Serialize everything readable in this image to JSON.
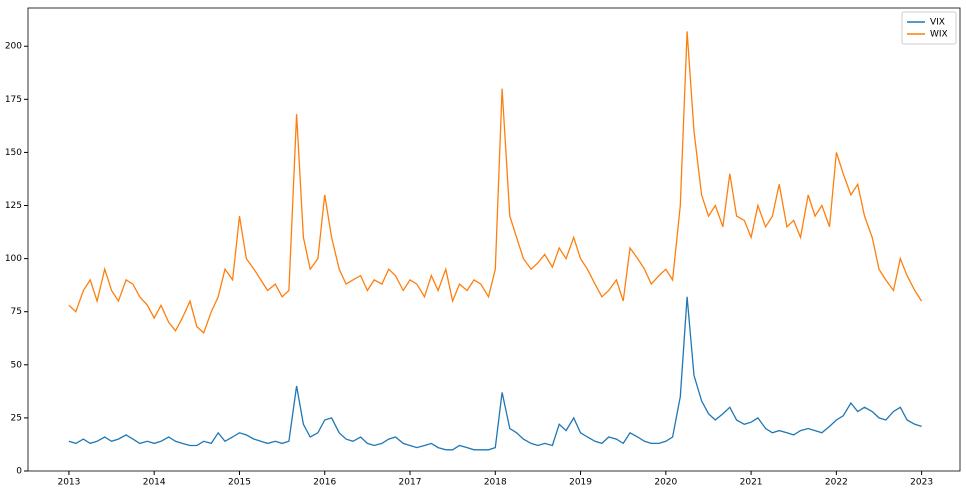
{
  "chart_data": {
    "type": "line",
    "x": [
      2013,
      2013.08,
      2013.17,
      2013.25,
      2013.33,
      2013.42,
      2013.5,
      2013.58,
      2013.67,
      2013.75,
      2013.83,
      2013.92,
      2014,
      2014.08,
      2014.17,
      2014.25,
      2014.33,
      2014.42,
      2014.5,
      2014.58,
      2014.67,
      2014.75,
      2014.83,
      2014.92,
      2015,
      2015.08,
      2015.17,
      2015.25,
      2015.33,
      2015.42,
      2015.5,
      2015.58,
      2015.67,
      2015.75,
      2015.83,
      2015.92,
      2016,
      2016.08,
      2016.17,
      2016.25,
      2016.33,
      2016.42,
      2016.5,
      2016.58,
      2016.67,
      2016.75,
      2016.83,
      2016.92,
      2017,
      2017.08,
      2017.17,
      2017.25,
      2017.33,
      2017.42,
      2017.5,
      2017.58,
      2017.67,
      2017.75,
      2017.83,
      2017.92,
      2018,
      2018.08,
      2018.17,
      2018.25,
      2018.33,
      2018.42,
      2018.5,
      2018.58,
      2018.67,
      2018.75,
      2018.83,
      2018.92,
      2019,
      2019.08,
      2019.17,
      2019.25,
      2019.33,
      2019.42,
      2019.5,
      2019.58,
      2019.67,
      2019.75,
      2019.83,
      2019.92,
      2020,
      2020.08,
      2020.17,
      2020.25,
      2020.33,
      2020.42,
      2020.5,
      2020.58,
      2020.67,
      2020.75,
      2020.83,
      2020.92,
      2021,
      2021.08,
      2021.17,
      2021.25,
      2021.33,
      2021.42,
      2021.5,
      2021.58,
      2021.67,
      2021.75,
      2021.83,
      2021.92,
      2022,
      2022.08,
      2022.17,
      2022.25,
      2022.33,
      2022.42,
      2022.5,
      2022.58,
      2022.67,
      2022.75,
      2022.83,
      2022.92,
      2023
    ],
    "series": [
      {
        "name": "VIX",
        "color": "#1f77b4",
        "values": [
          14,
          13,
          15,
          13,
          14,
          16,
          14,
          15,
          17,
          15,
          13,
          14,
          13,
          14,
          16,
          14,
          13,
          12,
          12,
          14,
          13,
          18,
          14,
          16,
          18,
          17,
          15,
          14,
          13,
          14,
          13,
          14,
          40,
          22,
          16,
          18,
          24,
          25,
          18,
          15,
          14,
          16,
          13,
          12,
          13,
          15,
          16,
          13,
          12,
          11,
          12,
          13,
          11,
          10,
          10,
          12,
          11,
          10,
          10,
          10,
          11,
          37,
          20,
          18,
          15,
          13,
          12,
          13,
          12,
          22,
          19,
          25,
          18,
          16,
          14,
          13,
          16,
          15,
          13,
          18,
          16,
          14,
          13,
          13,
          14,
          16,
          35,
          82,
          45,
          33,
          27,
          24,
          27,
          30,
          24,
          22,
          23,
          25,
          20,
          18,
          19,
          18,
          17,
          19,
          20,
          19,
          18,
          21,
          24,
          26,
          32,
          28,
          30,
          28,
          25,
          24,
          28,
          30,
          24,
          22,
          21
        ]
      },
      {
        "name": "WIX",
        "color": "#ff7f0e",
        "values": [
          78,
          75,
          85,
          90,
          80,
          95,
          85,
          80,
          90,
          88,
          82,
          78,
          72,
          78,
          70,
          66,
          72,
          80,
          68,
          65,
          75,
          82,
          95,
          90,
          120,
          100,
          95,
          90,
          85,
          88,
          82,
          85,
          168,
          110,
          95,
          100,
          130,
          110,
          95,
          88,
          90,
          92,
          85,
          90,
          88,
          95,
          92,
          85,
          90,
          88,
          82,
          92,
          85,
          95,
          80,
          88,
          85,
          90,
          88,
          82,
          95,
          180,
          120,
          110,
          100,
          95,
          98,
          102,
          96,
          105,
          100,
          110,
          100,
          95,
          88,
          82,
          85,
          90,
          80,
          105,
          100,
          95,
          88,
          92,
          95,
          90,
          125,
          207,
          160,
          130,
          120,
          125,
          115,
          140,
          120,
          118,
          110,
          125,
          115,
          120,
          135,
          115,
          118,
          110,
          130,
          120,
          125,
          115,
          150,
          140,
          130,
          135,
          120,
          110,
          95,
          90,
          85,
          100,
          92,
          85,
          80
        ]
      }
    ],
    "xlim": [
      2012.52,
      2023.45
    ],
    "xticks": [
      2013,
      2014,
      2015,
      2016,
      2017,
      2018,
      2019,
      2020,
      2021,
      2022,
      2023
    ],
    "ylim": [
      0,
      218
    ],
    "yticks": [
      0,
      25,
      50,
      75,
      100,
      125,
      150,
      175,
      200
    ],
    "legend": "upper right"
  }
}
